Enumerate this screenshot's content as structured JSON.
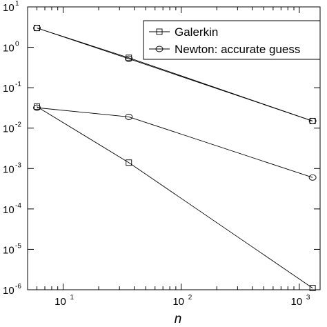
{
  "chart_data": {
    "type": "line",
    "xscale": "log",
    "yscale": "log",
    "xlim": [
      5,
      1500
    ],
    "ylim": [
      1e-06,
      10
    ],
    "xlabel": "n",
    "ylabel": "",
    "title": "",
    "grid": false,
    "legend_position": "top-right",
    "x_ticks": [
      {
        "value": 10,
        "base": "10",
        "exp": "1"
      },
      {
        "value": 100,
        "base": "10",
        "exp": "2"
      },
      {
        "value": 1000,
        "base": "10",
        "exp": "3"
      }
    ],
    "y_ticks": [
      {
        "value": 1e-06,
        "base": "10",
        "exp": "-6"
      },
      {
        "value": 1e-05,
        "base": "10",
        "exp": "-5"
      },
      {
        "value": 0.0001,
        "base": "10",
        "exp": "-4"
      },
      {
        "value": 0.001,
        "base": "10",
        "exp": "-3"
      },
      {
        "value": 0.01,
        "base": "10",
        "exp": "-2"
      },
      {
        "value": 0.1,
        "base": "10",
        "exp": "-1"
      },
      {
        "value": 1,
        "base": "10",
        "exp": "0"
      },
      {
        "value": 10,
        "base": "10",
        "exp": "1"
      }
    ],
    "series": [
      {
        "name": "Galerkin",
        "marker": "square",
        "in_legend": true,
        "x": [
          6,
          36,
          1296
        ],
        "y": [
          3.0,
          0.55,
          0.015
        ]
      },
      {
        "name": "Newton: accurate guess",
        "marker": "circle",
        "in_legend": true,
        "x": [
          6,
          36,
          1296
        ],
        "y": [
          3.0,
          0.52,
          0.015
        ]
      },
      {
        "marker": "square",
        "in_legend": false,
        "x": [
          6,
          36,
          1296
        ],
        "y": [
          0.034,
          0.0014,
          1.1e-06
        ]
      },
      {
        "marker": "circle",
        "in_legend": false,
        "x": [
          6,
          36,
          1296
        ],
        "y": [
          0.032,
          0.019,
          0.0006
        ]
      }
    ]
  }
}
